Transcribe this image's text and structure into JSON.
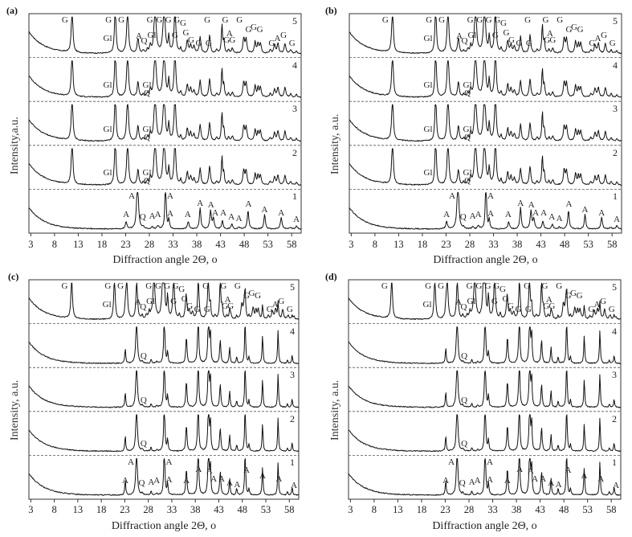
{
  "chart_data": [
    {
      "id": "a",
      "type": "line",
      "panel_label": "(a)",
      "title": "",
      "xlabel": "Diffraction angle 2Θ, °",
      "ylabel": "Intensity,a.u.",
      "xlim": [
        3,
        60
      ],
      "xticks": [
        3,
        8,
        13,
        18,
        23,
        28,
        33,
        38,
        43,
        48,
        53,
        58
      ],
      "grid": false,
      "legend": "curve numbers 1-5 at right of each stacked trace",
      "series": [
        {
          "name": "1",
          "peaks": [
            {
              "x": 23.1,
              "label": "A",
              "h": 0.25
            },
            {
              "x": 25.3,
              "label": "A",
              "h": 1.0
            },
            {
              "x": 26.6,
              "label": "Q",
              "h": 0.08
            },
            {
              "x": 28.7,
              "label": "A",
              "h": 0.1
            },
            {
              "x": 29.8,
              "label": "A",
              "h": 0.12
            },
            {
              "x": 31.6,
              "label": "A",
              "h": 1.0
            },
            {
              "x": 32.1,
              "label": "A",
              "h": 0.25
            },
            {
              "x": 36.1,
              "label": "A",
              "h": 0.2
            },
            {
              "x": 38.7,
              "label": "A",
              "h": 0.65
            },
            {
              "x": 40.9,
              "label": "A",
              "h": 0.55
            },
            {
              "x": 41.4,
              "label": "A",
              "h": 0.3
            },
            {
              "x": 43.4,
              "label": "A",
              "h": 0.25
            },
            {
              "x": 45.3,
              "label": "A",
              "h": 0.15
            },
            {
              "x": 46.9,
              "label": "A",
              "h": 0.1
            },
            {
              "x": 48.8,
              "label": "A",
              "h": 0.55
            },
            {
              "x": 52.2,
              "label": "A",
              "h": 0.45
            },
            {
              "x": 55.7,
              "label": "A",
              "h": 0.35
            },
            {
              "x": 58.9,
              "label": "A",
              "h": 0.12
            }
          ]
        },
        {
          "name": "2",
          "peaks": [
            {
              "x": 11.7,
              "h": 1.0
            },
            {
              "x": 20.8,
              "label": "Gl",
              "h": 0.1
            },
            {
              "x": 20.8,
              "h": 1.0
            },
            {
              "x": 23.4,
              "h": 1.0
            },
            {
              "x": 25.7,
              "h": 0.55
            },
            {
              "x": 27.2,
              "label": "Q",
              "h": 0.2
            },
            {
              "x": 28.2,
              "label": "Gl",
              "h": 0.25
            },
            {
              "x": 29.2,
              "h": 1.0
            },
            {
              "x": 31.1,
              "h": 1.0
            },
            {
              "x": 32.1,
              "h": 0.45
            },
            {
              "x": 33.4,
              "h": 1.0
            },
            {
              "x": 36.0,
              "h": 0.35
            },
            {
              "x": 37.3,
              "h": 0.3
            },
            {
              "x": 38.7,
              "h": 0.45
            },
            {
              "x": 40.7,
              "h": 0.55
            },
            {
              "x": 43.3,
              "h": 0.8
            },
            {
              "x": 45.0,
              "h": 0.15
            },
            {
              "x": 47.9,
              "h": 0.45
            },
            {
              "x": 48.4,
              "h": 0.45
            },
            {
              "x": 50.4,
              "h": 0.35
            },
            {
              "x": 51.4,
              "h": 0.3
            },
            {
              "x": 54.6,
              "h": 0.25
            },
            {
              "x": 56.5,
              "h": 0.3
            }
          ]
        },
        {
          "name": "3",
          "peaks": "same as 2"
        },
        {
          "name": "4",
          "peaks": "same as 2"
        },
        {
          "name": "5",
          "peaks": "same as 2 with G labels"
        }
      ]
    },
    {
      "id": "b",
      "type": "line",
      "panel_label": "(b)",
      "xlabel": "Diffraction angle 2Θ, °",
      "ylabel": "Intensity, a.u.",
      "xlim": [
        3,
        60
      ],
      "xticks": [
        3,
        8,
        13,
        18,
        23,
        28,
        33,
        38,
        43,
        48,
        53,
        58
      ],
      "series": [
        {
          "name": "1"
        },
        {
          "name": "2"
        },
        {
          "name": "3"
        },
        {
          "name": "4"
        },
        {
          "name": "5"
        }
      ]
    },
    {
      "id": "c",
      "type": "line",
      "panel_label": "(c)",
      "xlabel": "Diffraction angle 2Θ, °",
      "ylabel": "Intensity, a.u.",
      "xlim": [
        3,
        60
      ],
      "xticks": [
        3,
        8,
        13,
        18,
        23,
        28,
        33,
        38,
        43,
        48,
        53,
        58
      ],
      "series": [
        {
          "name": "1"
        },
        {
          "name": "2"
        },
        {
          "name": "3"
        },
        {
          "name": "4"
        },
        {
          "name": "5"
        }
      ]
    },
    {
      "id": "d",
      "type": "line",
      "panel_label": "(d)",
      "xlabel": "Diffraction angle 2Θ, °",
      "ylabel": "Intensity, a.u.",
      "xlim": [
        3,
        60
      ],
      "xticks": [
        3,
        8,
        13,
        18,
        23,
        28,
        33,
        38,
        43,
        48,
        53,
        58
      ],
      "series": [
        {
          "name": "1"
        },
        {
          "name": "2"
        },
        {
          "name": "3"
        },
        {
          "name": "4"
        },
        {
          "name": "5"
        }
      ]
    }
  ],
  "panels": [
    {
      "letter": "(a)",
      "ylabel": "Intensity,a.u.",
      "xlabel": "Diffraction angle 2Θ, ο",
      "kind": "gypsum",
      "top_labels": [
        {
          "x": 10.2,
          "lvl": 0,
          "t": "G"
        },
        {
          "x": 19.4,
          "lvl": 0,
          "t": "G"
        },
        {
          "x": 22.1,
          "lvl": 0,
          "t": "G"
        },
        {
          "x": 28.1,
          "lvl": 0,
          "t": "G"
        },
        {
          "x": 30.1,
          "lvl": 0,
          "t": "G"
        },
        {
          "x": 32.0,
          "lvl": 0,
          "t": "G"
        },
        {
          "x": 33.8,
          "lvl": 0,
          "t": "G"
        },
        {
          "x": 35.1,
          "lvl": 0.1,
          "t": "G"
        },
        {
          "x": 40.2,
          "lvl": 0,
          "t": "G"
        },
        {
          "x": 44.0,
          "lvl": 0,
          "t": "G"
        },
        {
          "x": 47.0,
          "lvl": 0,
          "t": "G"
        },
        {
          "x": 48.9,
          "lvl": 0.28,
          "t": "G"
        },
        {
          "x": 50.0,
          "lvl": 0.22,
          "t": "G"
        },
        {
          "x": 51.3,
          "lvl": 0.28,
          "t": "G"
        },
        {
          "x": 19.2,
          "lvl": 0.55,
          "t": "Gl"
        },
        {
          "x": 25.8,
          "lvl": 0.48,
          "t": "A"
        },
        {
          "x": 26.9,
          "lvl": 0.6,
          "t": "Q"
        },
        {
          "x": 28.5,
          "lvl": 0.45,
          "t": "Gl"
        },
        {
          "x": 33.4,
          "lvl": 0.45,
          "t": "G"
        },
        {
          "x": 35.7,
          "lvl": 0.38,
          "t": "G"
        },
        {
          "x": 36.8,
          "lvl": 0.58,
          "t": "G"
        },
        {
          "x": 38.4,
          "lvl": 0.68,
          "t": "G"
        },
        {
          "x": 40.5,
          "lvl": 0.68,
          "t": "G"
        },
        {
          "x": 44.3,
          "lvl": 0.58,
          "t": "G"
        },
        {
          "x": 44.9,
          "lvl": 0.4,
          "t": "A"
        },
        {
          "x": 45.5,
          "lvl": 0.58,
          "t": "G"
        },
        {
          "x": 53.8,
          "lvl": 0.68,
          "t": "G"
        },
        {
          "x": 55.0,
          "lvl": 0.55,
          "t": "A"
        },
        {
          "x": 56.3,
          "lvl": 0.45,
          "t": "G"
        },
        {
          "x": 58.1,
          "lvl": 0.68,
          "t": "G"
        }
      ],
      "mid_labels": [
        {
          "x": 19.2,
          "t": "Gl"
        },
        {
          "x": 27.5,
          "t": "Gl",
          "t2": "Q"
        }
      ],
      "bottom_labels": [
        {
          "x": 23.1,
          "lvl": 0.55,
          "t": "A"
        },
        {
          "x": 24.3,
          "lvl": 0.02,
          "t": "A"
        },
        {
          "x": 26.6,
          "lvl": 0.62,
          "t": "Q"
        },
        {
          "x": 28.6,
          "lvl": 0.6,
          "t": "A"
        },
        {
          "x": 29.8,
          "lvl": 0.56,
          "t": "A"
        },
        {
          "x": 32.4,
          "lvl": 0.02,
          "t": "A"
        },
        {
          "x": 32.4,
          "lvl": 0.52,
          "t": "A"
        },
        {
          "x": 36.1,
          "lvl": 0.56,
          "t": "A"
        },
        {
          "x": 38.7,
          "lvl": 0.22,
          "t": "A"
        },
        {
          "x": 41.0,
          "lvl": 0.28,
          "t": "A"
        },
        {
          "x": 41.9,
          "lvl": 0.5,
          "t": "A"
        },
        {
          "x": 43.6,
          "lvl": 0.5,
          "t": "A"
        },
        {
          "x": 45.3,
          "lvl": 0.62,
          "t": "A"
        },
        {
          "x": 46.9,
          "lvl": 0.66,
          "t": "A"
        },
        {
          "x": 48.9,
          "lvl": 0.25,
          "t": "A"
        },
        {
          "x": 52.3,
          "lvl": 0.42,
          "t": "A"
        },
        {
          "x": 55.8,
          "lvl": 0.5,
          "t": "A"
        },
        {
          "x": 59.0,
          "lvl": 0.7,
          "t": "A"
        }
      ]
    },
    {
      "letter": "(b)",
      "ylabel": "Intensity, a.u.",
      "xlabel": "Diffraction angle 2Θ, ο",
      "kind": "gypsum"
    },
    {
      "letter": "(c)",
      "ylabel": "Intensity, a.u.",
      "xlabel": "Diffraction angle 2Θ, ο",
      "kind": "anhydrite"
    },
    {
      "letter": "(d)",
      "ylabel": "Intensity, a.u.",
      "xlabel": "Diffraction angle 2Θ, ο",
      "kind": "anhydrite"
    }
  ],
  "curve_numbers": [
    "5",
    "4",
    "3",
    "2",
    "1"
  ],
  "xticks": [
    "3",
    "8",
    "13",
    "18",
    "23",
    "28",
    "33",
    "38",
    "43",
    "48",
    "53",
    "58"
  ],
  "colors": {
    "line": "#111111",
    "axis": "#333333",
    "divider": "#555555",
    "text": "#222222"
  }
}
